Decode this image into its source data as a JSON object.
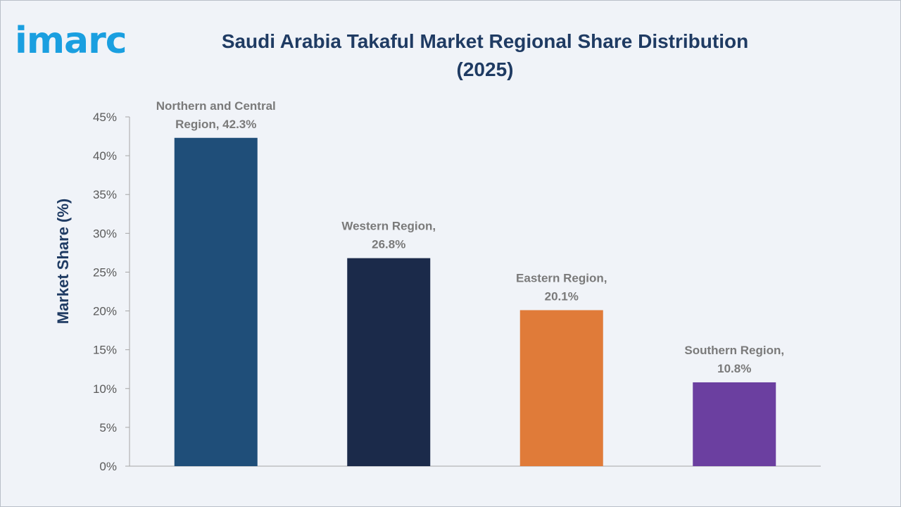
{
  "brand": {
    "logo_text": "imarc",
    "logo_color": "#1a9fe0"
  },
  "header": {
    "title_line1": "Saudi Arabia Takaful Market Regional Share Distribution",
    "title_line2": "(2025)"
  },
  "chart_data": {
    "type": "bar",
    "title": "Saudi Arabia Takaful Market Regional Share Distribution (2025)",
    "ylabel": "Market Share (%)",
    "xlabel": "",
    "ylim": [
      0,
      45
    ],
    "yticks": [
      0,
      5,
      10,
      15,
      20,
      25,
      30,
      35,
      40,
      45
    ],
    "ytick_labels": [
      "0%",
      "5%",
      "10%",
      "15%",
      "20%",
      "25%",
      "30%",
      "35%",
      "40%",
      "45%"
    ],
    "categories": [
      "Northern and Central Region",
      "Western Region",
      "Eastern Region",
      "Southern Region"
    ],
    "values": [
      42.3,
      26.8,
      20.1,
      10.8
    ],
    "data_labels": [
      [
        "Northern and Central",
        "Region, 42.3%"
      ],
      [
        "Western Region,",
        "26.8%"
      ],
      [
        "Eastern Region,",
        "20.1%"
      ],
      [
        "Southern Region,",
        "10.8%"
      ]
    ],
    "colors": [
      "#1f4e79",
      "#1b2a4a",
      "#e07b39",
      "#6b3fa0"
    ],
    "grid": false,
    "legend": "none"
  }
}
